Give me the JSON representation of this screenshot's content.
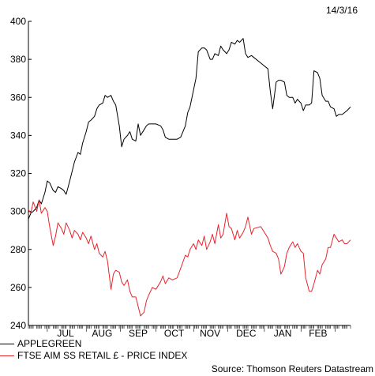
{
  "date_label": "14/3/16",
  "source_label": "Source: Thomson Reuters Datastream",
  "chart_data": {
    "type": "line",
    "title": "",
    "xlabel": "",
    "ylabel": "",
    "ylim": [
      240,
      400
    ],
    "yticks": [
      240,
      260,
      280,
      300,
      320,
      340,
      360,
      380,
      400
    ],
    "grid": false,
    "legend_position": "bottom-left",
    "month_labels": [
      "JUL",
      "AUG",
      "SEP",
      "OCT",
      "NOV",
      "DEC",
      "JAN",
      "FEB"
    ],
    "x_start": "2015-06-15",
    "x_end": "2016-03-14",
    "series": [
      {
        "name": "APPLEGREEN",
        "color": "#000000",
        "points": [
          [
            "2015-06-15",
            296
          ],
          [
            "2015-06-17",
            299
          ],
          [
            "2015-06-19",
            300
          ],
          [
            "2015-06-22",
            302
          ],
          [
            "2015-06-24",
            306
          ],
          [
            "2015-06-26",
            304
          ],
          [
            "2015-06-29",
            310
          ],
          [
            "2015-07-01",
            316
          ],
          [
            "2015-07-03",
            315
          ],
          [
            "2015-07-06",
            311
          ],
          [
            "2015-07-08",
            310
          ],
          [
            "2015-07-10",
            313
          ],
          [
            "2015-07-13",
            312
          ],
          [
            "2015-07-15",
            311
          ],
          [
            "2015-07-17",
            309
          ],
          [
            "2015-07-20",
            316
          ],
          [
            "2015-07-22",
            321
          ],
          [
            "2015-07-24",
            326
          ],
          [
            "2015-07-27",
            331
          ],
          [
            "2015-07-29",
            330
          ],
          [
            "2015-07-31",
            336
          ],
          [
            "2015-08-03",
            342
          ],
          [
            "2015-08-05",
            347
          ],
          [
            "2015-08-07",
            348
          ],
          [
            "2015-08-10",
            350
          ],
          [
            "2015-08-12",
            354
          ],
          [
            "2015-08-14",
            356
          ],
          [
            "2015-08-17",
            357
          ],
          [
            "2015-08-19",
            361
          ],
          [
            "2015-08-21",
            360
          ],
          [
            "2015-08-24",
            361
          ],
          [
            "2015-08-26",
            358
          ],
          [
            "2015-08-28",
            356
          ],
          [
            "2015-08-31",
            345
          ],
          [
            "2015-09-02",
            334
          ],
          [
            "2015-09-04",
            338
          ],
          [
            "2015-09-07",
            340
          ],
          [
            "2015-09-09",
            342
          ],
          [
            "2015-09-11",
            338
          ],
          [
            "2015-09-14",
            337
          ],
          [
            "2015-09-16",
            346
          ],
          [
            "2015-09-18",
            340
          ],
          [
            "2015-09-21",
            343
          ],
          [
            "2015-09-23",
            345
          ],
          [
            "2015-09-25",
            346
          ],
          [
            "2015-09-28",
            346
          ],
          [
            "2015-10-01",
            346
          ],
          [
            "2015-10-05",
            345
          ],
          [
            "2015-10-07",
            343
          ],
          [
            "2015-10-09",
            339
          ],
          [
            "2015-10-12",
            338
          ],
          [
            "2015-10-15",
            338
          ],
          [
            "2015-10-19",
            338
          ],
          [
            "2015-10-22",
            339
          ],
          [
            "2015-10-26",
            345
          ],
          [
            "2015-10-28",
            352
          ],
          [
            "2015-10-30",
            355
          ],
          [
            "2015-11-02",
            364
          ],
          [
            "2015-11-04",
            370
          ],
          [
            "2015-11-06",
            384
          ],
          [
            "2015-11-09",
            386
          ],
          [
            "2015-11-11",
            386
          ],
          [
            "2015-11-13",
            385
          ],
          [
            "2015-11-16",
            380
          ],
          [
            "2015-11-18",
            380
          ],
          [
            "2015-11-20",
            383
          ],
          [
            "2015-11-23",
            382
          ],
          [
            "2015-11-25",
            387
          ],
          [
            "2015-11-27",
            385
          ],
          [
            "2015-11-30",
            383
          ],
          [
            "2015-12-02",
            385
          ],
          [
            "2015-12-04",
            389
          ],
          [
            "2015-12-07",
            388
          ],
          [
            "2015-12-09",
            390
          ],
          [
            "2015-12-11",
            389
          ],
          [
            "2015-12-14",
            391
          ],
          [
            "2015-12-16",
            383
          ],
          [
            "2015-12-18",
            381
          ],
          [
            "2015-12-21",
            382
          ],
          [
            "2015-12-23",
            381
          ],
          [
            "2015-12-29",
            378
          ],
          [
            "2016-01-04",
            375
          ],
          [
            "2016-01-06",
            363
          ],
          [
            "2016-01-08",
            354
          ],
          [
            "2016-01-11",
            368
          ],
          [
            "2016-01-13",
            369
          ],
          [
            "2016-01-15",
            369
          ],
          [
            "2016-01-18",
            368
          ],
          [
            "2016-01-20",
            361
          ],
          [
            "2016-01-22",
            360
          ],
          [
            "2016-01-25",
            360
          ],
          [
            "2016-01-27",
            357
          ],
          [
            "2016-01-29",
            359
          ],
          [
            "2016-02-01",
            357
          ],
          [
            "2016-02-03",
            353
          ],
          [
            "2016-02-05",
            356
          ],
          [
            "2016-02-08",
            356
          ],
          [
            "2016-02-10",
            357
          ],
          [
            "2016-02-12",
            374
          ],
          [
            "2016-02-15",
            373
          ],
          [
            "2016-02-17",
            370
          ],
          [
            "2016-02-19",
            361
          ],
          [
            "2016-02-22",
            358
          ],
          [
            "2016-02-24",
            358
          ],
          [
            "2016-02-26",
            355
          ],
          [
            "2016-02-29",
            354
          ],
          [
            "2016-03-02",
            350
          ],
          [
            "2016-03-04",
            351
          ],
          [
            "2016-03-07",
            351
          ],
          [
            "2016-03-09",
            352
          ],
          [
            "2016-03-11",
            353
          ],
          [
            "2016-03-14",
            355
          ]
        ]
      },
      {
        "name": "FTSE AIM SS RETAIL £ - PRICE INDEX",
        "color": "#e8242c",
        "points": [
          [
            "2015-06-15",
            301
          ],
          [
            "2015-06-17",
            299
          ],
          [
            "2015-06-19",
            305
          ],
          [
            "2015-06-22",
            300
          ],
          [
            "2015-06-24",
            306
          ],
          [
            "2015-06-26",
            299
          ],
          [
            "2015-06-29",
            302
          ],
          [
            "2015-07-01",
            300
          ],
          [
            "2015-07-03",
            292
          ],
          [
            "2015-07-06",
            282
          ],
          [
            "2015-07-08",
            287
          ],
          [
            "2015-07-10",
            294
          ],
          [
            "2015-07-13",
            291
          ],
          [
            "2015-07-15",
            288
          ],
          [
            "2015-07-17",
            294
          ],
          [
            "2015-07-20",
            290
          ],
          [
            "2015-07-22",
            286
          ],
          [
            "2015-07-24",
            290
          ],
          [
            "2015-07-27",
            288
          ],
          [
            "2015-07-29",
            285
          ],
          [
            "2015-07-31",
            289
          ],
          [
            "2015-08-03",
            286
          ],
          [
            "2015-08-05",
            283
          ],
          [
            "2015-08-07",
            287
          ],
          [
            "2015-08-10",
            280
          ],
          [
            "2015-08-12",
            283
          ],
          [
            "2015-08-14",
            278
          ],
          [
            "2015-08-17",
            276
          ],
          [
            "2015-08-19",
            279
          ],
          [
            "2015-08-21",
            274
          ],
          [
            "2015-08-24",
            259
          ],
          [
            "2015-08-26",
            267
          ],
          [
            "2015-08-28",
            269
          ],
          [
            "2015-08-31",
            268
          ],
          [
            "2015-09-02",
            263
          ],
          [
            "2015-09-04",
            261
          ],
          [
            "2015-09-07",
            264
          ],
          [
            "2015-09-09",
            258
          ],
          [
            "2015-09-11",
            255
          ],
          [
            "2015-09-14",
            255
          ],
          [
            "2015-09-16",
            250
          ],
          [
            "2015-09-18",
            245
          ],
          [
            "2015-09-21",
            247
          ],
          [
            "2015-09-23",
            253
          ],
          [
            "2015-09-25",
            256
          ],
          [
            "2015-09-28",
            260
          ],
          [
            "2015-10-01",
            259
          ],
          [
            "2015-10-05",
            263
          ],
          [
            "2015-10-07",
            266
          ],
          [
            "2015-10-09",
            262
          ],
          [
            "2015-10-12",
            265
          ],
          [
            "2015-10-15",
            264
          ],
          [
            "2015-10-19",
            265
          ],
          [
            "2015-10-22",
            270
          ],
          [
            "2015-10-26",
            277
          ],
          [
            "2015-10-28",
            276
          ],
          [
            "2015-10-30",
            280
          ],
          [
            "2015-11-02",
            283
          ],
          [
            "2015-11-04",
            280
          ],
          [
            "2015-11-06",
            285
          ],
          [
            "2015-11-09",
            282
          ],
          [
            "2015-11-11",
            287
          ],
          [
            "2015-11-13",
            280
          ],
          [
            "2015-11-16",
            284
          ],
          [
            "2015-11-18",
            288
          ],
          [
            "2015-11-20",
            283
          ],
          [
            "2015-11-23",
            293
          ],
          [
            "2015-11-25",
            286
          ],
          [
            "2015-11-27",
            288
          ],
          [
            "2015-11-30",
            299
          ],
          [
            "2015-12-02",
            292
          ],
          [
            "2015-12-04",
            291
          ],
          [
            "2015-12-07",
            285
          ],
          [
            "2015-12-09",
            290
          ],
          [
            "2015-12-11",
            286
          ],
          [
            "2015-12-14",
            289
          ],
          [
            "2015-12-16",
            292
          ],
          [
            "2015-12-18",
            297
          ],
          [
            "2015-12-21",
            288
          ],
          [
            "2015-12-23",
            291
          ],
          [
            "2015-12-29",
            292
          ],
          [
            "2016-01-04",
            286
          ],
          [
            "2016-01-06",
            282
          ],
          [
            "2016-01-08",
            279
          ],
          [
            "2016-01-11",
            278
          ],
          [
            "2016-01-13",
            275
          ],
          [
            "2016-01-15",
            267
          ],
          [
            "2016-01-18",
            271
          ],
          [
            "2016-01-20",
            278
          ],
          [
            "2016-01-22",
            281
          ],
          [
            "2016-01-25",
            284
          ],
          [
            "2016-01-27",
            281
          ],
          [
            "2016-01-29",
            283
          ],
          [
            "2016-02-01",
            279
          ],
          [
            "2016-02-03",
            278
          ],
          [
            "2016-02-05",
            265
          ],
          [
            "2016-02-08",
            258
          ],
          [
            "2016-02-10",
            258
          ],
          [
            "2016-02-12",
            262
          ],
          [
            "2016-02-15",
            269
          ],
          [
            "2016-02-17",
            267
          ],
          [
            "2016-02-19",
            272
          ],
          [
            "2016-02-22",
            275
          ],
          [
            "2016-02-24",
            281
          ],
          [
            "2016-02-26",
            281
          ],
          [
            "2016-02-29",
            288
          ],
          [
            "2016-03-02",
            286
          ],
          [
            "2016-03-04",
            284
          ],
          [
            "2016-03-07",
            285
          ],
          [
            "2016-03-09",
            283
          ],
          [
            "2016-03-11",
            283
          ],
          [
            "2016-03-14",
            285
          ]
        ]
      }
    ]
  }
}
